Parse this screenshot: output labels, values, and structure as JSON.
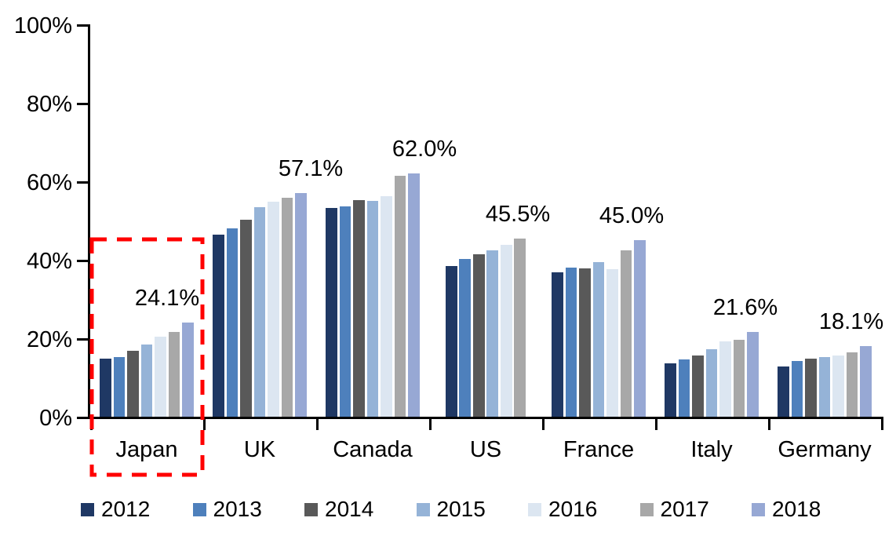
{
  "chart_data": {
    "type": "bar",
    "title": "",
    "unit": "%",
    "categories": [
      "Japan",
      "UK",
      "Canada",
      "US",
      "France",
      "Italy",
      "Germany"
    ],
    "series": [
      {
        "name": "2012",
        "color": "#1F3864",
        "values": [
          14.9,
          46.5,
          53.2,
          38.5,
          36.8,
          13.6,
          12.8
        ]
      },
      {
        "name": "2013",
        "color": "#4E80BC",
        "values": [
          15.2,
          48.1,
          53.7,
          40.3,
          38.0,
          14.6,
          14.2
        ]
      },
      {
        "name": "2014",
        "color": "#595959",
        "values": [
          16.9,
          50.2,
          55.2,
          41.4,
          37.9,
          15.7,
          14.8
        ]
      },
      {
        "name": "2015",
        "color": "#95B3D7",
        "values": [
          18.5,
          53.4,
          55.0,
          42.5,
          39.5,
          17.3,
          15.2
        ]
      },
      {
        "name": "2016",
        "color": "#DCE6F1",
        "values": [
          20.4,
          54.8,
          56.3,
          43.9,
          37.7,
          19.3,
          15.7
        ]
      },
      {
        "name": "2017",
        "color": "#A8A8A8",
        "values": [
          21.7,
          55.9,
          61.5,
          45.5,
          42.5,
          19.7,
          16.4
        ]
      },
      {
        "name": "2018",
        "color": "#97A8D4",
        "values": [
          24.1,
          57.1,
          62.0,
          null,
          45.0,
          21.6,
          18.1
        ]
      }
    ],
    "data_labels": [
      "24.1%",
      "57.1%",
      "62.0%",
      "45.5%",
      "45.0%",
      "21.6%",
      "18.1%"
    ],
    "y_ticks": [
      "0%",
      "20%",
      "40%",
      "60%",
      "80%",
      "100%"
    ],
    "ylim": [
      0,
      100
    ],
    "grid": false,
    "legend_position": "bottom",
    "axis_color": "#000000",
    "highlight": {
      "category": "Japan",
      "style": "red-dashed-rectangle",
      "color": "#FF0000"
    }
  }
}
